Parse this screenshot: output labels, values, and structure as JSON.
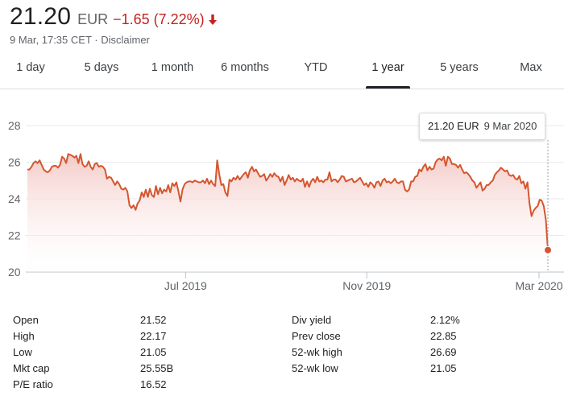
{
  "quote": {
    "price": "21.20",
    "currency": "EUR",
    "change": "−1.65 (7.22%)",
    "timestamp": "9 Mar, 17:35 CET · ",
    "disclaimer": "Disclaimer"
  },
  "tabs": [
    {
      "label": "1 day",
      "active": false
    },
    {
      "label": "5 days",
      "active": false
    },
    {
      "label": "1 month",
      "active": false
    },
    {
      "label": "6 months",
      "active": false
    },
    {
      "label": "YTD",
      "active": false
    },
    {
      "label": "1 year",
      "active": true
    },
    {
      "label": "5 years",
      "active": false
    },
    {
      "label": "Max",
      "active": false
    }
  ],
  "tooltip": {
    "value": "21.20 EUR",
    "date": "9 Mar 2020"
  },
  "colors": {
    "line": "#d4562e",
    "fill_top": "#f2c5c1",
    "negative": "#c5221f",
    "grid": "#e8eaed"
  },
  "chart_data": {
    "type": "area",
    "ylim": [
      20,
      28
    ],
    "yticks": [
      20,
      22,
      24,
      26,
      28
    ],
    "xticks": [
      "Jul 2019",
      "Nov 2019",
      "Mar 2020"
    ],
    "series": [
      {
        "values": [
          25.6,
          25.6,
          25.75,
          25.95,
          26.05,
          25.95,
          26.1,
          25.85,
          25.6,
          25.5,
          25.45,
          25.55,
          25.75,
          25.8,
          25.8,
          25.7,
          25.85,
          26.3,
          26.2,
          25.95,
          26.45,
          26.4,
          26.35,
          26.25,
          26.35,
          25.95,
          26.45,
          25.9,
          25.75,
          25.8,
          26.05,
          25.75,
          25.6,
          25.9,
          25.95,
          25.75,
          25.8,
          25.75,
          25.6,
          25.1,
          25.2,
          25.15,
          24.95,
          24.75,
          24.95,
          24.8,
          24.55,
          24.5,
          24.6,
          24.4,
          23.65,
          23.5,
          23.65,
          23.4,
          23.75,
          23.9,
          24.35,
          24.1,
          24.5,
          24.1,
          24.55,
          24.2,
          24.1,
          24.7,
          24.25,
          24.6,
          24.3,
          24.5,
          24.4,
          24.75,
          24.35,
          24.85,
          24.7,
          24.9,
          24.4,
          23.85,
          24.5,
          24.8,
          24.9,
          24.95,
          24.95,
          24.9,
          25.0,
          24.95,
          24.9,
          24.9,
          25.0,
          24.85,
          25.1,
          24.8,
          25.0,
          24.8,
          24.7,
          26.1,
          25.35,
          24.75,
          24.8,
          24.35,
          24.15,
          25.05,
          24.95,
          25.15,
          25.05,
          25.25,
          25.05,
          25.2,
          25.35,
          25.45,
          25.15,
          25.55,
          25.75,
          25.5,
          25.6,
          25.4,
          25.2,
          25.25,
          25.35,
          25.0,
          25.15,
          25.35,
          25.2,
          25.4,
          25.25,
          25.2,
          24.95,
          25.2,
          24.75,
          25.0,
          25.3,
          25.05,
          25.15,
          24.95,
          25.1,
          25.0,
          24.95,
          25.1,
          24.65,
          24.95,
          24.65,
          24.95,
          25.1,
          24.9,
          25.2,
          24.95,
          25.0,
          24.9,
          25.05,
          25.05,
          25.45,
          24.95,
          25.05,
          25.05,
          24.9,
          25.05,
          25.25,
          25.2,
          24.95,
          25.0,
          25.05,
          25.1,
          24.9,
          24.95,
          25.05,
          25.15,
          24.95,
          24.75,
          24.85,
          24.65,
          24.9,
          24.8,
          24.6,
          24.9,
          24.95,
          24.7,
          25.0,
          25.1,
          24.9,
          24.95,
          24.85,
          24.95,
          25.1,
          24.9,
          24.85,
          24.95,
          24.95,
          24.5,
          24.4,
          24.5,
          24.95,
          24.95,
          25.2,
          25.25,
          25.6,
          25.5,
          25.75,
          25.9,
          25.55,
          25.75,
          25.6,
          25.65,
          26.0,
          26.15,
          26.2,
          26.1,
          26.3,
          25.8,
          26.3,
          26.2,
          25.9,
          25.9,
          25.85,
          25.7,
          25.85,
          25.6,
          25.4,
          25.45,
          25.35,
          25.2,
          25.0,
          24.9,
          24.6,
          24.75,
          24.9,
          24.45,
          24.55,
          24.75,
          24.75,
          24.9,
          25.0,
          25.3,
          25.45,
          25.55,
          25.7,
          25.6,
          25.5,
          25.55,
          25.3,
          25.25,
          25.3,
          25.1,
          25.05,
          25.25,
          24.85,
          24.95,
          24.55,
          24.9,
          23.75,
          23.05,
          23.35,
          23.5,
          23.6,
          23.95,
          23.9,
          23.6,
          22.85,
          21.2
        ]
      }
    ]
  },
  "stats": {
    "left": [
      {
        "label": "Open",
        "value": "21.52"
      },
      {
        "label": "High",
        "value": "22.17"
      },
      {
        "label": "Low",
        "value": "21.05"
      },
      {
        "label": "Mkt cap",
        "value": "25.55B"
      },
      {
        "label": "P/E ratio",
        "value": "16.52"
      }
    ],
    "right": [
      {
        "label": "Div yield",
        "value": "2.12%"
      },
      {
        "label": "Prev close",
        "value": "22.85"
      },
      {
        "label": "52-wk high",
        "value": "26.69"
      },
      {
        "label": "52-wk low",
        "value": "21.05"
      }
    ]
  }
}
